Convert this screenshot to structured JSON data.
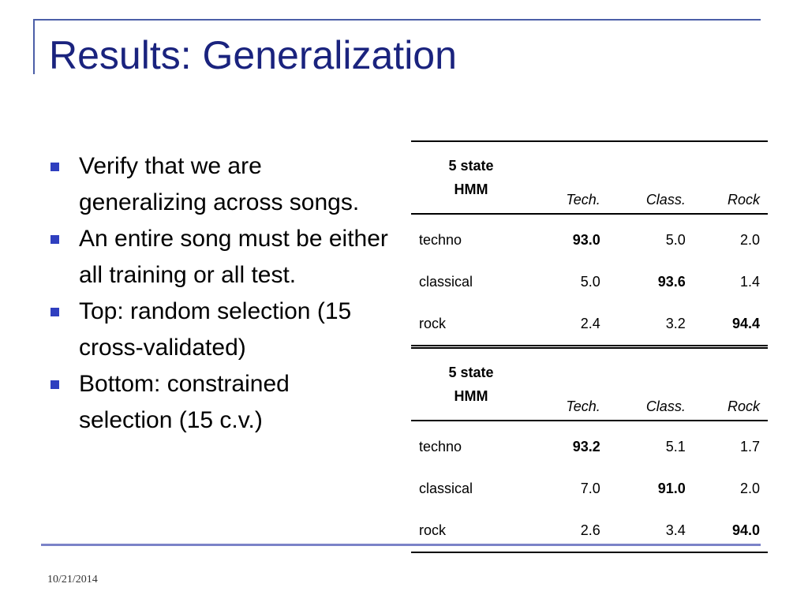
{
  "slide": {
    "title": "Results: Generalization",
    "date": "10/21/2014"
  },
  "colors": {
    "title": "#1a237e",
    "bullet_marker": "#2f3fbf",
    "frame_line": "#4c5fa8"
  },
  "bullets": [
    "Verify that we are generalizing across songs.",
    "An entire song must be either all training or all test.",
    "Top: random selection (15 cross-validated)",
    "Bottom: constrained selection (15 c.v.)"
  ],
  "tables": [
    {
      "corner_line1": "5 state",
      "corner_line2": "HMM",
      "columns": [
        "Tech.",
        "Class.",
        "Rock"
      ],
      "rows": [
        {
          "label": "techno",
          "values": [
            "93.0",
            "5.0",
            "2.0"
          ],
          "bold_index": 0
        },
        {
          "label": "classical",
          "values": [
            "5.0",
            "93.6",
            "1.4"
          ],
          "bold_index": 1
        },
        {
          "label": "rock",
          "values": [
            "2.4",
            "3.2",
            "94.4"
          ],
          "bold_index": 2
        }
      ]
    },
    {
      "corner_line1": "5 state",
      "corner_line2": "HMM",
      "columns": [
        "Tech.",
        "Class.",
        "Rock"
      ],
      "rows": [
        {
          "label": "techno",
          "values": [
            "93.2",
            "5.1",
            "1.7"
          ],
          "bold_index": 0
        },
        {
          "label": "classical",
          "values": [
            "7.0",
            "91.0",
            "2.0"
          ],
          "bold_index": 1
        },
        {
          "label": "rock",
          "values": [
            "2.6",
            "3.4",
            "94.0"
          ],
          "bold_index": 2
        }
      ]
    }
  ]
}
